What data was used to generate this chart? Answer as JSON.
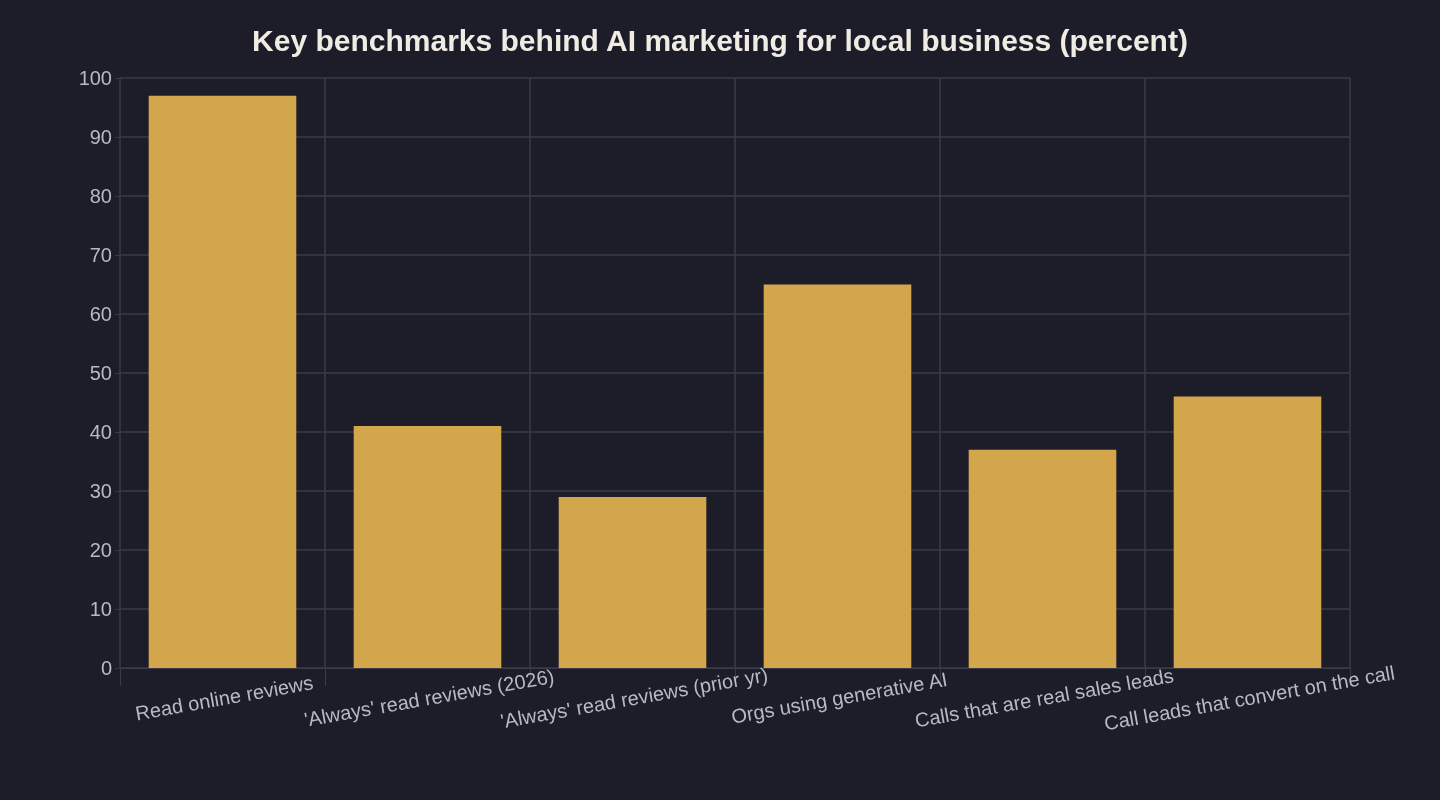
{
  "chart_data": {
    "type": "bar",
    "title": "Key benchmarks behind AI marketing for local business (percent)",
    "categories": [
      "Read online reviews",
      "'Always' read reviews (2026)",
      "'Always' read reviews (prior yr)",
      "Orgs using generative AI",
      "Calls that are real sales leads",
      "Call leads that convert on the call"
    ],
    "values": [
      97,
      41,
      29,
      65,
      37,
      46
    ],
    "color": "#d4a64c",
    "ylim": [
      0,
      100
    ],
    "yticks": [
      0,
      10,
      20,
      30,
      40,
      50,
      60,
      70,
      80,
      90,
      100
    ],
    "grid": true
  }
}
